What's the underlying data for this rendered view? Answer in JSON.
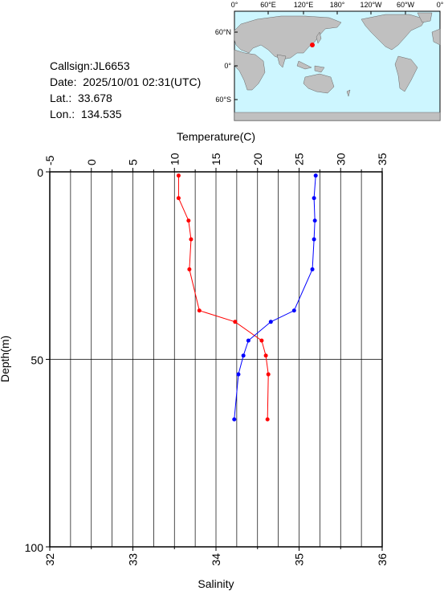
{
  "info": {
    "callsign": "Callsign:JL6653",
    "date": "Date:  2025/10/01 02:31(UTC)",
    "lat": "Lat.:  33.678",
    "lon": "Lon.:  134.535"
  },
  "map": {
    "lon_labels": [
      "0°",
      "60°E",
      "120°E",
      "180°",
      "120°W",
      "60°W",
      "0°"
    ],
    "lat_labels": [
      "60°N",
      "0°",
      "60°S"
    ],
    "station_color": "#ff0000",
    "ocean_color": "#cdf6ff",
    "land_color": "#c0c0c0"
  },
  "chart_data": {
    "type": "line",
    "title": "",
    "ylabel": "Depth(m)",
    "ylim": [
      0,
      100
    ],
    "y_inverted": true,
    "y_ticks": [
      "0",
      "50",
      "100"
    ],
    "top_axis": {
      "label": "Temperature(C)",
      "range": [
        -5,
        35
      ],
      "ticks": [
        "-5",
        "0",
        "5",
        "10",
        "15",
        "20",
        "25",
        "30",
        "35"
      ]
    },
    "bottom_axis": {
      "label": "Salinity",
      "range": [
        32,
        36
      ],
      "ticks": [
        "32",
        "33",
        "34",
        "35",
        "36"
      ]
    },
    "grid": true,
    "series": [
      {
        "color": "#ff0000",
        "axis": "top",
        "x": [
          10.5,
          10.5,
          11.7,
          12.0,
          11.8,
          13.0,
          17.3,
          20.5,
          21.0,
          21.3,
          21.2
        ],
        "y": [
          1,
          7,
          13,
          18,
          26,
          37,
          40,
          45,
          49,
          54,
          66
        ]
      },
      {
        "color": "#0000ff",
        "axis": "bottom",
        "x": [
          35.2,
          35.18,
          35.19,
          35.18,
          35.16,
          34.94,
          34.66,
          34.39,
          34.33,
          34.27,
          34.22
        ],
        "y": [
          1,
          7,
          13,
          18,
          26,
          37,
          40,
          45,
          49,
          54,
          66
        ]
      }
    ]
  }
}
